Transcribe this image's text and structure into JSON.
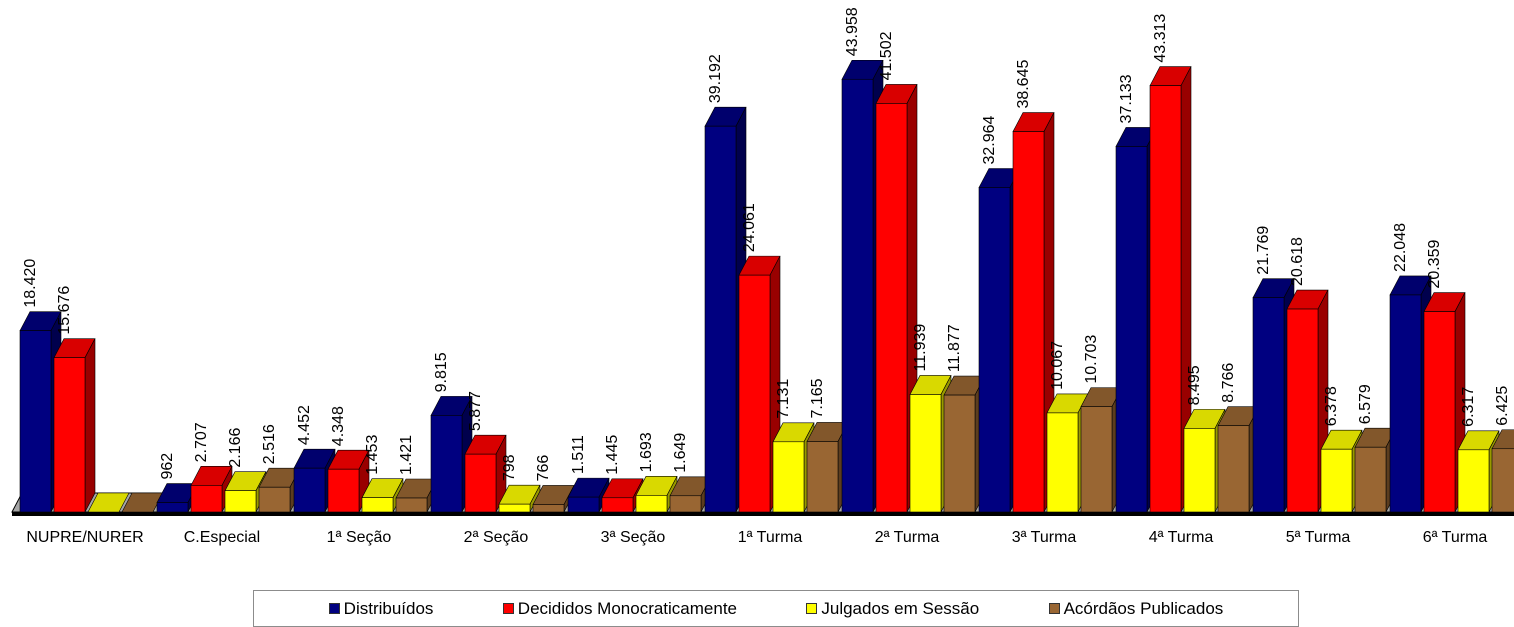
{
  "chart_data": {
    "type": "bar",
    "categories": [
      "NUPRE/NURER",
      "C.Especial",
      "1ª Seção",
      "2ª Seção",
      "3ª Seção",
      "1ª Turma",
      "2ª Turma",
      "3ª Turma",
      "4ª Turma",
      "5ª Turma",
      "6ª Turma"
    ],
    "series": [
      {
        "name": "Distribuídos",
        "color": "#000080",
        "values": [
          18420,
          962,
          4452,
          9815,
          1511,
          39192,
          43958,
          32964,
          37133,
          21769,
          22048
        ],
        "labels": [
          "18.420",
          "962",
          "4.452",
          "9.815",
          "1.511",
          "39.192",
          "43.958",
          "32.964",
          "37.133",
          "21.769",
          "22.048"
        ]
      },
      {
        "name": "Decididos Monocraticamente",
        "color": "#ff0000",
        "values": [
          15676,
          2707,
          4348,
          5877,
          1445,
          24061,
          41502,
          38645,
          43313,
          20618,
          20359
        ],
        "labels": [
          "15.676",
          "2.707",
          "4.348",
          "5.877",
          "1.445",
          "24.061",
          "41.502",
          "38.645",
          "43.313",
          "20.618",
          "20.359"
        ]
      },
      {
        "name": "Julgados em Sessão",
        "color": "#ffff00",
        "values": [
          0,
          2166,
          1453,
          798,
          1693,
          7131,
          11939,
          10067,
          8495,
          6378,
          6317
        ],
        "labels": [
          "",
          "2.166",
          "1.453",
          "798",
          "1.693",
          "7.131",
          "11.939",
          "10.067",
          "8.495",
          "6.378",
          "6.317"
        ]
      },
      {
        "name": "Acórdãos Publicados",
        "color": "#996633",
        "values": [
          0,
          2516,
          1421,
          766,
          1649,
          7165,
          11877,
          10703,
          8766,
          6579,
          6425
        ],
        "labels": [
          "",
          "2.516",
          "1.421",
          "766",
          "1.649",
          "7.165",
          "11.877",
          "10.703",
          "8.766",
          "6.579",
          "6.425"
        ]
      }
    ],
    "ylim": [
      0,
      45000
    ],
    "grid": false,
    "legend_position": "bottom",
    "style": "3d-column"
  }
}
